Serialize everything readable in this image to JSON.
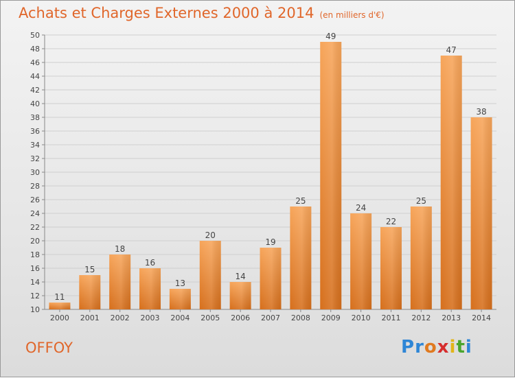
{
  "title": "Achats et Charges Externes 2000 à 2014",
  "subtitle": "(en milliers d'€)",
  "commune": "OFFOY",
  "logo": {
    "text": "Proxiti",
    "colors": [
      "#2e86d6",
      "#2e86d6",
      "#e07a20",
      "#d62e2e",
      "#e2b51a",
      "#4aa52e",
      "#2e86d6"
    ]
  },
  "colors": {
    "accent": "#e0662a",
    "bar_top": "#f7a55a",
    "bar_bottom": "#d66f1c"
  },
  "chart_data": {
    "type": "bar",
    "categories": [
      "2000",
      "2001",
      "2002",
      "2003",
      "2004",
      "2005",
      "2006",
      "2007",
      "2008",
      "2009",
      "2010",
      "2011",
      "2012",
      "2013",
      "2014"
    ],
    "values": [
      11,
      15,
      18,
      16,
      13,
      20,
      14,
      19,
      25,
      49,
      24,
      22,
      25,
      47,
      38
    ],
    "ylim": [
      10,
      50
    ],
    "yticks": [
      10,
      12,
      14,
      16,
      18,
      20,
      22,
      24,
      26,
      28,
      30,
      32,
      34,
      36,
      38,
      40,
      42,
      44,
      46,
      48,
      50
    ],
    "grid": true
  }
}
